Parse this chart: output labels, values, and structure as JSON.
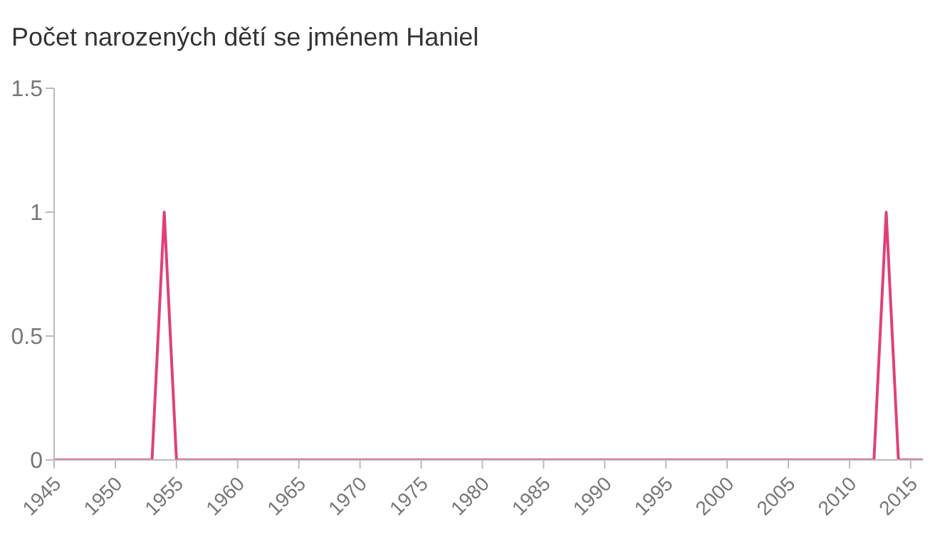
{
  "chart_data": {
    "type": "line",
    "title": "Počet narozených dětí se jménem Haniel",
    "x": [
      1945,
      1946,
      1947,
      1948,
      1949,
      1950,
      1951,
      1952,
      1953,
      1954,
      1955,
      1956,
      1957,
      1958,
      1959,
      1960,
      1961,
      1962,
      1963,
      1964,
      1965,
      1966,
      1967,
      1968,
      1969,
      1970,
      1971,
      1972,
      1973,
      1974,
      1975,
      1976,
      1977,
      1978,
      1979,
      1980,
      1981,
      1982,
      1983,
      1984,
      1985,
      1986,
      1987,
      1988,
      1989,
      1990,
      1991,
      1992,
      1993,
      1994,
      1995,
      1996,
      1997,
      1998,
      1999,
      2000,
      2001,
      2002,
      2003,
      2004,
      2005,
      2006,
      2007,
      2008,
      2009,
      2010,
      2011,
      2012,
      2013,
      2014,
      2015,
      2016
    ],
    "series": [
      {
        "color": "#e0407a",
        "values": [
          0,
          0,
          0,
          0,
          0,
          0,
          0,
          0,
          0,
          1,
          0,
          0,
          0,
          0,
          0,
          0,
          0,
          0,
          0,
          0,
          0,
          0,
          0,
          0,
          0,
          0,
          0,
          0,
          0,
          0,
          0,
          0,
          0,
          0,
          0,
          0,
          0,
          0,
          0,
          0,
          0,
          0,
          0,
          0,
          0,
          0,
          0,
          0,
          0,
          0,
          0,
          0,
          0,
          0,
          0,
          0,
          0,
          0,
          0,
          0,
          0,
          0,
          0,
          0,
          0,
          0,
          0,
          0,
          1,
          0,
          0,
          0
        ]
      }
    ],
    "xlim": [
      1945,
      2016
    ],
    "xticks": [
      1945,
      1950,
      1955,
      1960,
      1965,
      1970,
      1975,
      1980,
      1985,
      1990,
      1995,
      2000,
      2005,
      2010,
      2015
    ],
    "ylim": [
      0,
      1.5
    ],
    "yticks": [
      0,
      0.5,
      1,
      1.5
    ],
    "grid": false,
    "marker": "none",
    "line_style": "solid"
  }
}
